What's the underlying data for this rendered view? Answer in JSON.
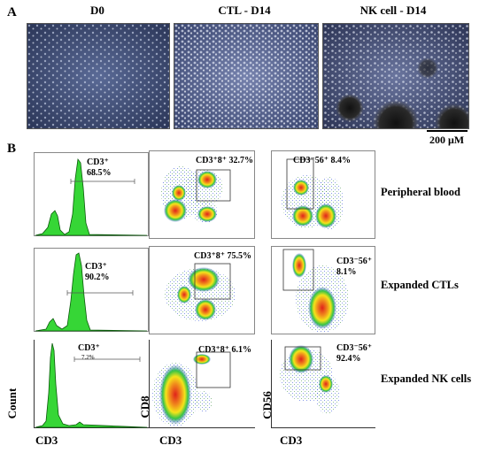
{
  "panelA": {
    "letter": "A",
    "columns": [
      "D0",
      "CTL - D14",
      "NK cell - D14"
    ],
    "scale_bar": "200 μM"
  },
  "panelB": {
    "letter": "B",
    "rows": [
      {
        "label": "Peripheral blood",
        "hist": {
          "gate": "CD3⁺",
          "percent": "68.5%"
        },
        "cd8": {
          "gate": "CD3⁺8⁺ 32.7%"
        },
        "cd56": {
          "gate": "CD3⁻56⁺ 8.4%"
        }
      },
      {
        "label": "Expanded CTLs",
        "hist": {
          "gate": "CD3⁺",
          "percent": "90.2%"
        },
        "cd8": {
          "gate": "CD3⁺8⁺ 75.5%"
        },
        "cd56": {
          "gate_line1": "CD3⁻56⁺",
          "gate_line2": "8.1%"
        }
      },
      {
        "label": "Expanded NK cells",
        "hist": {
          "gate": "CD3⁺",
          "percent": "7.2%"
        },
        "cd8": {
          "gate": "CD3⁺8⁺ 6.1%"
        },
        "cd56": {
          "gate_line1": "CD3⁻56⁺",
          "gate_line2": "92.4%"
        }
      }
    ],
    "axes": {
      "hist_y": "Count",
      "hist_x": "CD3",
      "cd8_y": "CD8",
      "cd8_x": "CD3",
      "cd56_y": "CD56",
      "cd56_x": "CD3"
    }
  },
  "colors": {
    "hist_fill": "#36d636",
    "micro_bg": "#3c4a6e"
  }
}
